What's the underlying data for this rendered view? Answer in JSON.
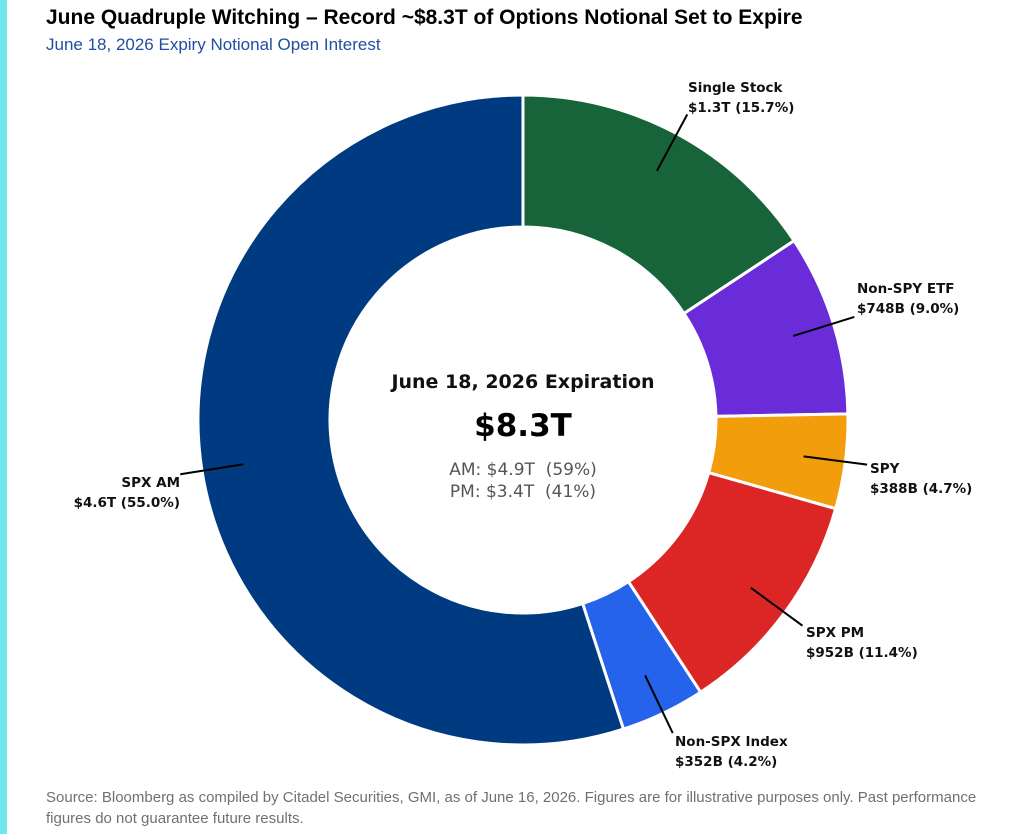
{
  "header": {
    "title": "June Quadruple Witching – Record ~$8.3T of Options Notional Set to Expire",
    "subtitle": "June 18, 2026 Expiry Notional Open Interest"
  },
  "footer": {
    "source": "Source: Bloomberg as compiled by Citadel Securities, GMI, as of June 16, 2026. Figures are for illustrative purposes only. Past performance figures do not guarantee future results."
  },
  "colors": {
    "accent_bar": "#6fe6ea",
    "title_blue": "#1f4fa0"
  },
  "chart_data": {
    "type": "pie",
    "donut": true,
    "title": "June Quadruple Witching – Record ~$8.3T of Options Notional Set to Expire",
    "subtitle": "June 18, 2026 Expiry Notional Open Interest",
    "center": {
      "title": "June 18, 2026 Expiration",
      "total": "$8.3T",
      "am": "AM: $4.9T  (59%)",
      "pm": "PM: $3.4T  (41%)"
    },
    "slices": [
      {
        "name": "Single Stock",
        "value_label": "$1.3T (15.7%)",
        "percent": 15.7,
        "color": "#17643a"
      },
      {
        "name": "Non-SPY ETF",
        "value_label": "$748B (9.0%)",
        "percent": 9.0,
        "color": "#6a2bd9"
      },
      {
        "name": "SPY",
        "value_label": "$388B (4.7%)",
        "percent": 4.7,
        "color": "#f29d0b"
      },
      {
        "name": "SPX PM",
        "value_label": "$952B (11.4%)",
        "percent": 11.4,
        "color": "#dc2626"
      },
      {
        "name": "Non-SPX Index",
        "value_label": "$352B (4.2%)",
        "percent": 4.2,
        "color": "#2563eb"
      },
      {
        "name": "SPX AM",
        "value_label": "$4.6T (55.0%)",
        "percent": 55.0,
        "color": "#003a80"
      }
    ]
  }
}
